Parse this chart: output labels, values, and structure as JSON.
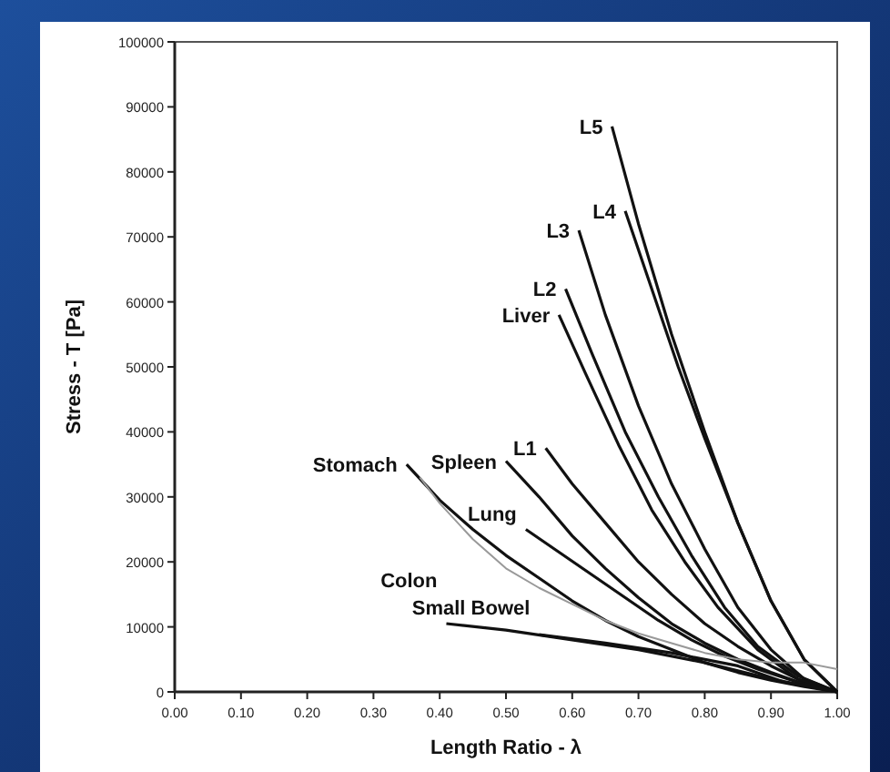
{
  "chart_data": {
    "type": "line",
    "xlabel": "Length Ratio - λ",
    "ylabel": "Stress - T  [Pa]",
    "xlim": [
      0,
      1
    ],
    "ylim": [
      0,
      100000
    ],
    "xticks": [
      {
        "value": 0,
        "label": "0.00"
      },
      {
        "value": 0.1,
        "label": "0.10"
      },
      {
        "value": 0.2,
        "label": "0.20"
      },
      {
        "value": 0.3,
        "label": "0.30"
      },
      {
        "value": 0.4,
        "label": "0.40"
      },
      {
        "value": 0.5,
        "label": "0.50"
      },
      {
        "value": 0.6,
        "label": "0.60"
      },
      {
        "value": 0.7,
        "label": "0.70"
      },
      {
        "value": 0.8,
        "label": "0.80"
      },
      {
        "value": 0.9,
        "label": "0.90"
      },
      {
        "value": 1,
        "label": "1.00"
      }
    ],
    "yticks": [
      0,
      10000,
      20000,
      30000,
      40000,
      50000,
      60000,
      70000,
      80000,
      90000,
      100000
    ],
    "grid": false,
    "marker": "none",
    "line_style": "solid",
    "series": [
      {
        "name": "L5",
        "color": "#111111",
        "x": [
          0.66,
          0.7,
          0.75,
          0.8,
          0.85,
          0.9,
          0.95,
          1
        ],
        "values": [
          87000,
          72000,
          55000,
          40000,
          26000,
          14000,
          5000,
          0
        ]
      },
      {
        "name": "L4",
        "color": "#111111",
        "x": [
          0.68,
          0.72,
          0.76,
          0.8,
          0.85,
          0.9,
          0.95,
          1
        ],
        "values": [
          74000,
          62000,
          50000,
          39000,
          26000,
          14000,
          5000,
          0
        ]
      },
      {
        "name": "L3",
        "color": "#111111",
        "x": [
          0.61,
          0.65,
          0.7,
          0.75,
          0.8,
          0.85,
          0.9,
          0.95,
          1
        ],
        "values": [
          71000,
          58000,
          44000,
          32000,
          22000,
          13000,
          6500,
          2000,
          0
        ]
      },
      {
        "name": "L2",
        "color": "#111111",
        "x": [
          0.59,
          0.63,
          0.68,
          0.73,
          0.78,
          0.83,
          0.88,
          0.94,
          1
        ],
        "values": [
          62000,
          52000,
          40000,
          30000,
          21000,
          13000,
          7000,
          2500,
          0
        ]
      },
      {
        "name": "Liver",
        "color": "#111111",
        "x": [
          0.58,
          0.62,
          0.67,
          0.72,
          0.77,
          0.82,
          0.88,
          0.94,
          1
        ],
        "values": [
          58000,
          49000,
          38000,
          28000,
          20000,
          13000,
          6500,
          2000,
          0
        ]
      },
      {
        "name": "L1",
        "color": "#111111",
        "x": [
          0.56,
          0.6,
          0.65,
          0.7,
          0.75,
          0.8,
          0.85,
          0.9,
          0.95,
          1
        ],
        "values": [
          37500,
          32000,
          26000,
          20000,
          15000,
          10500,
          7000,
          4000,
          1500,
          0
        ]
      },
      {
        "name": "Spleen",
        "color": "#111111",
        "x": [
          0.5,
          0.55,
          0.6,
          0.65,
          0.7,
          0.75,
          0.8,
          0.85,
          0.9,
          0.95,
          1
        ],
        "values": [
          35500,
          30000,
          24000,
          19000,
          14500,
          10500,
          7500,
          5000,
          3000,
          1200,
          0
        ]
      },
      {
        "name": "Lung",
        "color": "#111111",
        "x": [
          0.53,
          0.58,
          0.63,
          0.68,
          0.73,
          0.78,
          0.83,
          0.88,
          0.94,
          1
        ],
        "values": [
          25000,
          21500,
          18000,
          14500,
          11000,
          8000,
          5500,
          3500,
          1500,
          0
        ]
      },
      {
        "name": "Stomach",
        "color": "#111111",
        "x": [
          0.35,
          0.4,
          0.45,
          0.5,
          0.55,
          0.6,
          0.65,
          0.7,
          0.75,
          0.8,
          0.85,
          0.9,
          0.95,
          1
        ],
        "values": [
          35000,
          29500,
          25000,
          21000,
          17500,
          14000,
          11000,
          8500,
          6500,
          4500,
          3000,
          1800,
          800,
          0
        ]
      },
      {
        "color": "#999999",
        "x": [
          0.37,
          0.4,
          0.45,
          0.5,
          0.55,
          0.6,
          0.65,
          0.7,
          0.75,
          0.8,
          0.85,
          0.9,
          0.95,
          1
        ],
        "values": [
          33000,
          29000,
          23500,
          19000,
          16000,
          13500,
          11000,
          9000,
          7500,
          6000,
          5000,
          4500,
          4500,
          3500
        ]
      },
      {
        "name": "Small Bowel",
        "color": "#111111",
        "x": [
          0.55,
          0.65,
          0.75,
          0.85,
          0.92,
          1
        ],
        "values": [
          8800,
          7500,
          6000,
          4000,
          1500,
          0
        ]
      },
      {
        "name": "Colon",
        "color": "#111111",
        "x": [
          0.41,
          0.5,
          0.6,
          0.7,
          0.8,
          0.9,
          1
        ],
        "values": [
          10500,
          9500,
          8000,
          6500,
          4500,
          2000,
          0
        ]
      }
    ]
  }
}
